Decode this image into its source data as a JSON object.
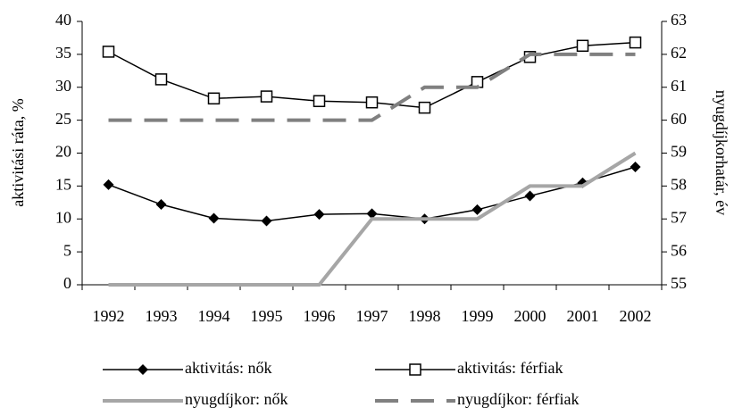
{
  "chart_data": {
    "type": "line",
    "categories": [
      "1992",
      "1993",
      "1994",
      "1995",
      "1996",
      "1997",
      "1998",
      "1999",
      "2000",
      "2001",
      "2002"
    ],
    "ylabel": "aktivitási ráta, %",
    "y2label": "nyugdíjkorhatár, év",
    "ylim": [
      0,
      40
    ],
    "yticks": [
      0,
      5,
      10,
      15,
      20,
      25,
      30,
      35,
      40
    ],
    "y2lim": [
      55,
      63
    ],
    "y2ticks": [
      55,
      56,
      57,
      58,
      59,
      60,
      61,
      62,
      63
    ],
    "grid": false,
    "series": [
      {
        "name": "aktivitás: nők",
        "color": "#000000",
        "marker": "diamond",
        "dashed": false,
        "values": [
          15.2,
          12.2,
          10.1,
          9.7,
          10.7,
          10.8,
          10.0,
          11.4,
          13.5,
          15.5,
          17.9
        ]
      },
      {
        "name": "aktivitás: férfiak",
        "color": "#000000",
        "marker": "square",
        "dashed": false,
        "values": [
          35.4,
          31.2,
          28.3,
          28.6,
          27.9,
          27.7,
          26.9,
          30.8,
          34.6,
          36.3,
          36.8
        ]
      },
      {
        "name": "nyugdíjkor: nők",
        "color": "#a6a6a6",
        "marker": "none",
        "dashed": false,
        "axis": "y2",
        "values": [
          55,
          55,
          55,
          55,
          55,
          57,
          57,
          57,
          58,
          58,
          59
        ]
      },
      {
        "name": "nyugdíjkor: férfiak",
        "color": "#808080",
        "marker": "none",
        "dashed": true,
        "axis": "y2",
        "values": [
          60,
          60,
          60,
          60,
          60,
          60,
          61,
          61,
          62,
          62,
          62
        ]
      }
    ]
  }
}
